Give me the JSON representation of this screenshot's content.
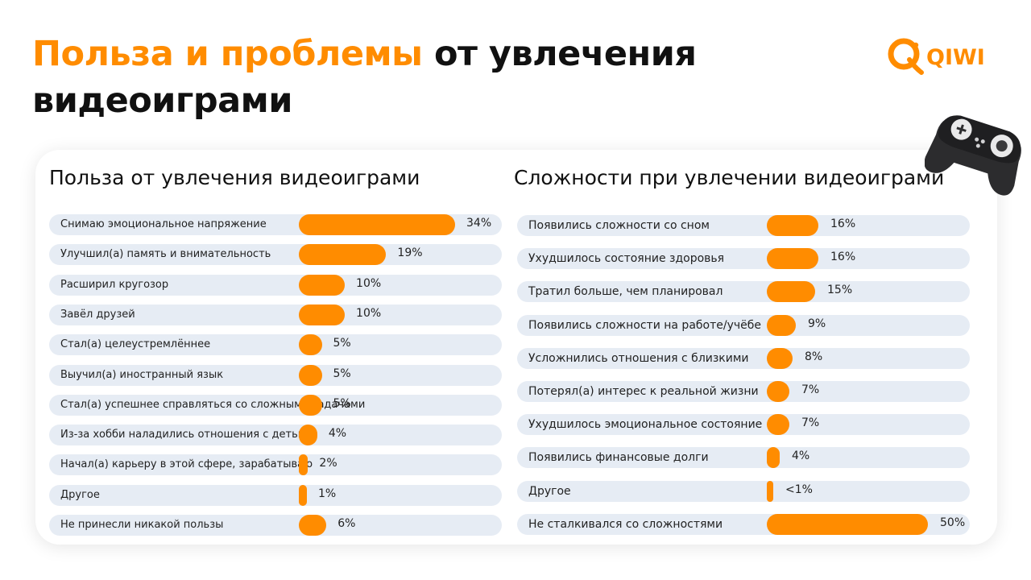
{
  "title": {
    "accent": "Польза и проблемы",
    "rest_line1": " от увлечения",
    "line2": "видеоиграми"
  },
  "logo": {
    "text": "QIWI",
    "icon": "qiwi-logo-icon"
  },
  "decor": {
    "icon": "gamepad-icon"
  },
  "colors": {
    "accent": "#ff8c00",
    "track": "#e6ecf4",
    "text": "#111111"
  },
  "chart_data": [
    {
      "type": "bar",
      "orientation": "horizontal",
      "title": "Польза от увлечения видеоиграми",
      "unit": "%",
      "xlim": [
        0,
        34
      ],
      "categories": [
        "Снимаю эмоциональное напряжение",
        "Улучшил(а) память и внимательность",
        "Расширил кругозор",
        "Завёл друзей",
        "Стал(а) целеустремлённее",
        "Выучил(а) иностранный язык",
        "Стал(а) успешнее справляться со сложными задачами",
        "Из-за хобби наладились отношения с детьми",
        "Начал(а) карьеру в этой сфере, зарабатываю",
        "Другое",
        "Не принесли никакой пользы"
      ],
      "values": [
        34,
        19,
        10,
        10,
        5,
        5,
        5,
        4,
        2,
        1,
        6
      ],
      "value_labels": [
        "34%",
        "19%",
        "10%",
        "10%",
        "5%",
        "5%",
        "5%",
        "4%",
        "2%",
        "1%",
        "6%"
      ]
    },
    {
      "type": "bar",
      "orientation": "horizontal",
      "title": "Сложности при увлечении видеоиграми",
      "unit": "%",
      "xlim": [
        0,
        50
      ],
      "categories": [
        "Появились сложности со сном",
        "Ухудшилось состояние здоровья",
        "Тратил больше, чем планировал",
        "Появились сложности на работе/учёбе",
        "Усложнились отношения с близкими",
        "Потерял(а) интерес к реальной жизни",
        "Ухудшилось эмоциональное состояние",
        "Появились финансовые долги",
        "Другое",
        "Не сталкивался со сложностями"
      ],
      "values": [
        16,
        16,
        15,
        9,
        8,
        7,
        7,
        4,
        0.5,
        50
      ],
      "value_labels": [
        "16%",
        "16%",
        "15%",
        "9%",
        "8%",
        "7%",
        "7%",
        "4%",
        "<1%",
        "50%"
      ]
    }
  ]
}
